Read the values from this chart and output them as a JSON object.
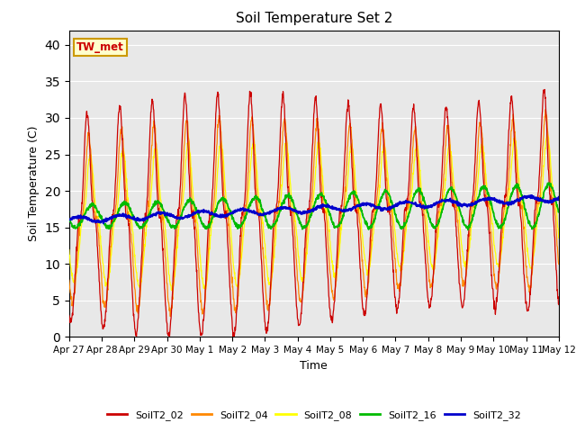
{
  "title": "Soil Temperature Set 2",
  "xlabel": "Time",
  "ylabel": "Soil Temperature (C)",
  "ylim": [
    0,
    42
  ],
  "yticks": [
    0,
    5,
    10,
    15,
    20,
    25,
    30,
    35,
    40
  ],
  "colors": {
    "SoilT2_02": "#CC0000",
    "SoilT2_04": "#FF8800",
    "SoilT2_08": "#FFFF00",
    "SoilT2_16": "#00BB00",
    "SoilT2_32": "#0000CC"
  },
  "annotation_text": "TW_met",
  "annotation_bg": "#FFFFCC",
  "annotation_border": "#CC9900",
  "bg_color": "#E8E8E8",
  "legend_labels": [
    "SoilT2_02",
    "SoilT2_04",
    "SoilT2_08",
    "SoilT2_16",
    "SoilT2_32"
  ],
  "xtick_labels": [
    "Apr 27",
    "Apr 28",
    "Apr 29",
    "Apr 30",
    "May 1",
    "May 2",
    "May 3",
    "May 4",
    "May 5",
    "May 6",
    "May 7",
    "May 8",
    "May 9",
    "May 10",
    "May 11",
    "May 12"
  ],
  "num_points": 1500
}
